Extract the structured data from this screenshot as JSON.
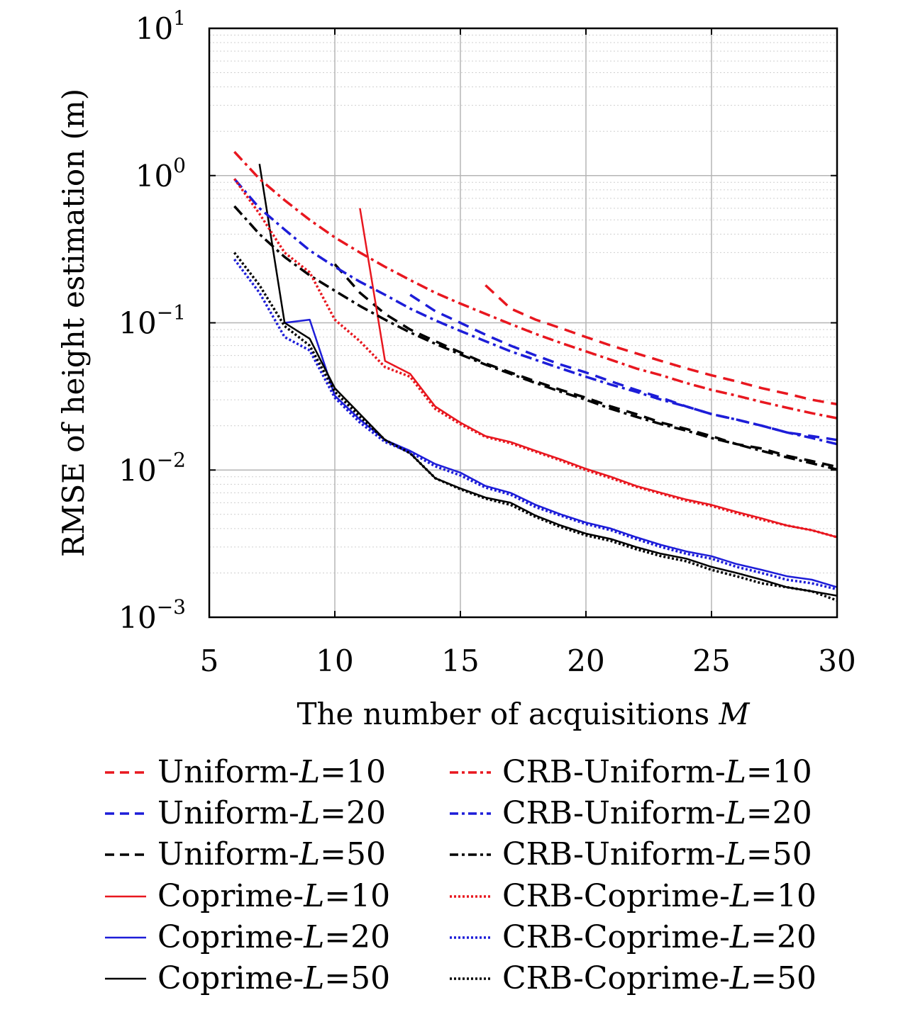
{
  "chart_data": {
    "type": "line",
    "xlabel": "The number of acquisitions",
    "xlabel_symbol": "M",
    "ylabel": "RMSE of height estimation (m)",
    "x_scale": "linear",
    "y_scale": "log",
    "xlim": [
      5,
      30
    ],
    "ylim": [
      0.001,
      10
    ],
    "x_ticks": [
      5,
      10,
      15,
      20,
      25,
      30
    ],
    "x_tick_labels": [
      "5",
      "10",
      "15",
      "20",
      "25",
      "30"
    ],
    "y_ticks": [
      0.001,
      0.01,
      0.1,
      1,
      10
    ],
    "y_tick_labels": [
      {
        "base": "10",
        "exp": "−3"
      },
      {
        "base": "10",
        "exp": "−2"
      },
      {
        "base": "10",
        "exp": "−1"
      },
      {
        "base": "10",
        "exp": "0"
      },
      {
        "base": "10",
        "exp": "1"
      }
    ],
    "grid": true,
    "legend_placement": "below",
    "series": [
      {
        "name": "Uniform-L=10",
        "color": "#e8171f",
        "style": "dashed",
        "x": [
          16,
          17,
          18,
          19,
          20,
          21,
          22,
          23,
          24,
          25,
          26,
          27,
          28,
          29,
          30
        ],
        "y": [
          0.18,
          0.125,
          0.105,
          0.092,
          0.08,
          0.07,
          0.062,
          0.055,
          0.049,
          0.044,
          0.04,
          0.036,
          0.033,
          0.03,
          0.028
        ]
      },
      {
        "name": "Uniform-L=20",
        "color": "#1d1dd8",
        "style": "dashed",
        "x": [
          13,
          14,
          15,
          16,
          17,
          18,
          19,
          20,
          21,
          22,
          23,
          24,
          25,
          26,
          27,
          28,
          29,
          30
        ],
        "y": [
          0.155,
          0.12,
          0.1,
          0.083,
          0.07,
          0.06,
          0.052,
          0.046,
          0.04,
          0.035,
          0.031,
          0.027,
          0.024,
          0.022,
          0.02,
          0.018,
          0.017,
          0.016
        ]
      },
      {
        "name": "Uniform-L=50",
        "color": "#000000",
        "style": "dashed",
        "x": [
          10,
          11,
          12,
          13,
          14,
          15,
          16,
          17,
          18,
          19,
          20,
          21,
          22,
          23,
          24,
          25,
          26,
          27,
          28,
          29,
          30
        ],
        "y": [
          0.25,
          0.16,
          0.115,
          0.09,
          0.075,
          0.063,
          0.053,
          0.046,
          0.04,
          0.035,
          0.031,
          0.027,
          0.024,
          0.021,
          0.019,
          0.017,
          0.015,
          0.014,
          0.0125,
          0.0115,
          0.0105
        ]
      },
      {
        "name": "Coprime-L=10",
        "color": "#e8171f",
        "style": "solid",
        "x": [
          11,
          12,
          13,
          14,
          15,
          16,
          17,
          18,
          19,
          20,
          21,
          22,
          23,
          24,
          25,
          26,
          27,
          28,
          29,
          30
        ],
        "y": [
          0.6,
          0.055,
          0.045,
          0.027,
          0.021,
          0.017,
          0.0155,
          0.0135,
          0.0118,
          0.0102,
          0.009,
          0.0078,
          0.007,
          0.0063,
          0.0058,
          0.0052,
          0.0047,
          0.0042,
          0.0039,
          0.0035
        ]
      },
      {
        "name": "Coprime-L=20",
        "color": "#1d1dd8",
        "style": "solid",
        "x": [
          8,
          9,
          10,
          11,
          12,
          13,
          14,
          15,
          16,
          17,
          18,
          19,
          20,
          21,
          22,
          23,
          24,
          25,
          26,
          27,
          28,
          29,
          30
        ],
        "y": [
          0.1,
          0.105,
          0.032,
          0.022,
          0.016,
          0.0135,
          0.011,
          0.0096,
          0.0078,
          0.007,
          0.0058,
          0.005,
          0.0044,
          0.004,
          0.0035,
          0.0031,
          0.0028,
          0.0026,
          0.0023,
          0.0021,
          0.0019,
          0.0018,
          0.0016
        ]
      },
      {
        "name": "Coprime-L=50",
        "color": "#000000",
        "style": "solid",
        "x": [
          7,
          8,
          9,
          10,
          11,
          12,
          13,
          14,
          15,
          16,
          17,
          18,
          19,
          20,
          21,
          22,
          23,
          24,
          25,
          26,
          27,
          28,
          29,
          30
        ],
        "y": [
          1.2,
          0.1,
          0.078,
          0.036,
          0.024,
          0.016,
          0.013,
          0.0088,
          0.0075,
          0.0065,
          0.006,
          0.0049,
          0.0042,
          0.0037,
          0.0034,
          0.003,
          0.0027,
          0.0025,
          0.0022,
          0.002,
          0.0018,
          0.0016,
          0.0015,
          0.0014
        ]
      },
      {
        "name": "CRB-Uniform-L=10",
        "color": "#e8171f",
        "style": "dashdot",
        "x": [
          6,
          7,
          8,
          9,
          10,
          11,
          12,
          13,
          14,
          15,
          16,
          17,
          18,
          19,
          20,
          21,
          22,
          23,
          24,
          25,
          26,
          27,
          28,
          29,
          30
        ],
        "y": [
          1.45,
          0.95,
          0.68,
          0.5,
          0.38,
          0.3,
          0.24,
          0.195,
          0.16,
          0.135,
          0.115,
          0.098,
          0.084,
          0.073,
          0.064,
          0.056,
          0.049,
          0.044,
          0.039,
          0.035,
          0.032,
          0.029,
          0.0265,
          0.0243,
          0.0225
        ]
      },
      {
        "name": "CRB-Uniform-L=20",
        "color": "#1d1dd8",
        "style": "dashdot",
        "x": [
          6,
          7,
          8,
          9,
          10,
          11,
          12,
          13,
          14,
          15,
          16,
          17,
          18,
          19,
          20,
          21,
          22,
          23,
          24,
          25,
          26,
          27,
          28,
          29,
          30
        ],
        "y": [
          0.95,
          0.6,
          0.43,
          0.31,
          0.24,
          0.19,
          0.155,
          0.125,
          0.104,
          0.088,
          0.075,
          0.064,
          0.056,
          0.049,
          0.043,
          0.038,
          0.034,
          0.03,
          0.027,
          0.024,
          0.022,
          0.02,
          0.018,
          0.0165,
          0.015
        ]
      },
      {
        "name": "CRB-Uniform-L=50",
        "color": "#000000",
        "style": "dashdot",
        "x": [
          6,
          7,
          8,
          9,
          10,
          11,
          12,
          13,
          14,
          15,
          16,
          17,
          18,
          19,
          20,
          21,
          22,
          23,
          24,
          25,
          26,
          27,
          28,
          29,
          30
        ],
        "y": [
          0.62,
          0.4,
          0.28,
          0.21,
          0.165,
          0.13,
          0.105,
          0.086,
          0.072,
          0.061,
          0.052,
          0.045,
          0.039,
          0.034,
          0.03,
          0.026,
          0.023,
          0.0205,
          0.0185,
          0.0165,
          0.015,
          0.0135,
          0.0122,
          0.0111,
          0.0101
        ]
      },
      {
        "name": "CRB-Coprime-L=10",
        "color": "#e8171f",
        "style": "dotted",
        "x": [
          6,
          7,
          8,
          9,
          10,
          11,
          12,
          13,
          14,
          15,
          16,
          17,
          18,
          19,
          20,
          21,
          22,
          23,
          24,
          25,
          26,
          27,
          28,
          29,
          30
        ],
        "y": [
          0.95,
          0.55,
          0.3,
          0.22,
          0.105,
          0.075,
          0.05,
          0.043,
          0.026,
          0.0205,
          0.0168,
          0.0152,
          0.0133,
          0.0116,
          0.01,
          0.0088,
          0.0077,
          0.0069,
          0.0062,
          0.0057,
          0.0051,
          0.0046,
          0.0042,
          0.0039,
          0.0035
        ]
      },
      {
        "name": "CRB-Coprime-L=20",
        "color": "#1d1dd8",
        "style": "dotted",
        "x": [
          6,
          7,
          8,
          9,
          10,
          11,
          12,
          13,
          14,
          15,
          16,
          17,
          18,
          19,
          20,
          21,
          22,
          23,
          24,
          25,
          26,
          27,
          28,
          29,
          30
        ],
        "y": [
          0.27,
          0.16,
          0.08,
          0.065,
          0.031,
          0.021,
          0.0155,
          0.0132,
          0.0106,
          0.0092,
          0.0076,
          0.0068,
          0.0056,
          0.0049,
          0.0043,
          0.0039,
          0.0034,
          0.003,
          0.0027,
          0.0025,
          0.0022,
          0.002,
          0.0018,
          0.0017,
          0.00155
        ]
      },
      {
        "name": "CRB-Coprime-L=50",
        "color": "#000000",
        "style": "dotted",
        "x": [
          6,
          7,
          8,
          9,
          10,
          11,
          12,
          13,
          14,
          15,
          16,
          17,
          18,
          19,
          20,
          21,
          22,
          23,
          24,
          25,
          26,
          27,
          28,
          29,
          30
        ],
        "y": [
          0.3,
          0.18,
          0.095,
          0.07,
          0.034,
          0.023,
          0.016,
          0.013,
          0.0088,
          0.0074,
          0.0064,
          0.0058,
          0.0048,
          0.0041,
          0.0036,
          0.0033,
          0.0029,
          0.0026,
          0.0024,
          0.0021,
          0.0019,
          0.0017,
          0.0016,
          0.0015,
          0.0013
        ]
      }
    ]
  },
  "legend": {
    "left": [
      {
        "prefix": "Uniform-",
        "sym": "L",
        "suffix": "=10",
        "series": 0
      },
      {
        "prefix": "Uniform-",
        "sym": "L",
        "suffix": "=20",
        "series": 1
      },
      {
        "prefix": "Uniform-",
        "sym": "L",
        "suffix": "=50",
        "series": 2
      },
      {
        "prefix": "Coprime-",
        "sym": "L",
        "suffix": "=10",
        "series": 3
      },
      {
        "prefix": "Coprime-",
        "sym": "L",
        "suffix": "=20",
        "series": 4
      },
      {
        "prefix": "Coprime-",
        "sym": "L",
        "suffix": "=50",
        "series": 5
      }
    ],
    "right": [
      {
        "prefix": "CRB-Uniform-",
        "sym": "L",
        "suffix": "=10",
        "series": 6
      },
      {
        "prefix": "CRB-Uniform-",
        "sym": "L",
        "suffix": "=20",
        "series": 7
      },
      {
        "prefix": "CRB-Uniform-",
        "sym": "L",
        "suffix": "=50",
        "series": 8
      },
      {
        "prefix": "CRB-Coprime-",
        "sym": "L",
        "suffix": "=10",
        "series": 9
      },
      {
        "prefix": "CRB-Coprime-",
        "sym": "L",
        "suffix": "=20",
        "series": 10
      },
      {
        "prefix": "CRB-Coprime-",
        "sym": "L",
        "suffix": "=50",
        "series": 11
      }
    ]
  }
}
